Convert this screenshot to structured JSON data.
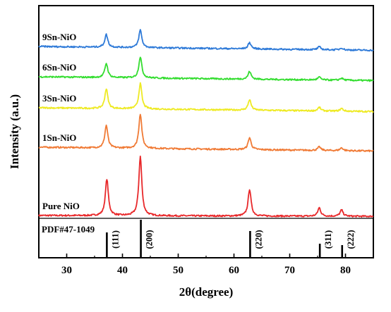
{
  "chart_data": {
    "type": "line",
    "xlabel": "2θ(degree)",
    "ylabel": "Intensity (a.u.)",
    "xlim": [
      25,
      85
    ],
    "xticks": [
      30,
      40,
      50,
      60,
      70,
      80
    ],
    "grid": false,
    "series": [
      {
        "name": "Pure NiO",
        "color": "#e8282a",
        "baseline": 0,
        "peaks": [
          [
            37.2,
            52
          ],
          [
            43.2,
            84
          ],
          [
            62.8,
            38
          ],
          [
            75.3,
            12
          ],
          [
            79.3,
            9
          ]
        ]
      },
      {
        "name": "1Sn-NiO",
        "color": "#f07a35",
        "baseline": 97,
        "peaks": [
          [
            37.1,
            32
          ],
          [
            43.2,
            49
          ],
          [
            62.8,
            17
          ],
          [
            75.3,
            5
          ],
          [
            79.3,
            4
          ]
        ]
      },
      {
        "name": "3Sn-NiO",
        "color": "#eeea23",
        "baseline": 153,
        "peaks": [
          [
            37.1,
            28
          ],
          [
            43.2,
            36
          ],
          [
            62.8,
            15
          ],
          [
            75.3,
            5
          ],
          [
            79.3,
            4
          ]
        ]
      },
      {
        "name": "6Sn-NiO",
        "color": "#33dd2f",
        "baseline": 197,
        "peaks": [
          [
            37.1,
            20
          ],
          [
            43.2,
            30
          ],
          [
            62.8,
            11
          ],
          [
            75.3,
            4
          ],
          [
            79.3,
            3
          ]
        ]
      },
      {
        "name": "9Sn-NiO",
        "color": "#2e7ad8",
        "baseline": 240,
        "peaks": [
          [
            37.1,
            18
          ],
          [
            43.2,
            25
          ],
          [
            62.8,
            9
          ],
          [
            75.3,
            4
          ],
          [
            79.3,
            3
          ]
        ]
      }
    ],
    "reference": {
      "name": "PDF#47-1049",
      "lines": [
        {
          "x": 37.2,
          "label": "(111)",
          "height": 26
        },
        {
          "x": 43.3,
          "label": "(200)",
          "height": 44
        },
        {
          "x": 62.9,
          "label": "(220)",
          "height": 28
        },
        {
          "x": 75.4,
          "label": "(311)",
          "height": 10
        },
        {
          "x": 79.4,
          "label": "(222)",
          "height": 8
        }
      ]
    }
  }
}
